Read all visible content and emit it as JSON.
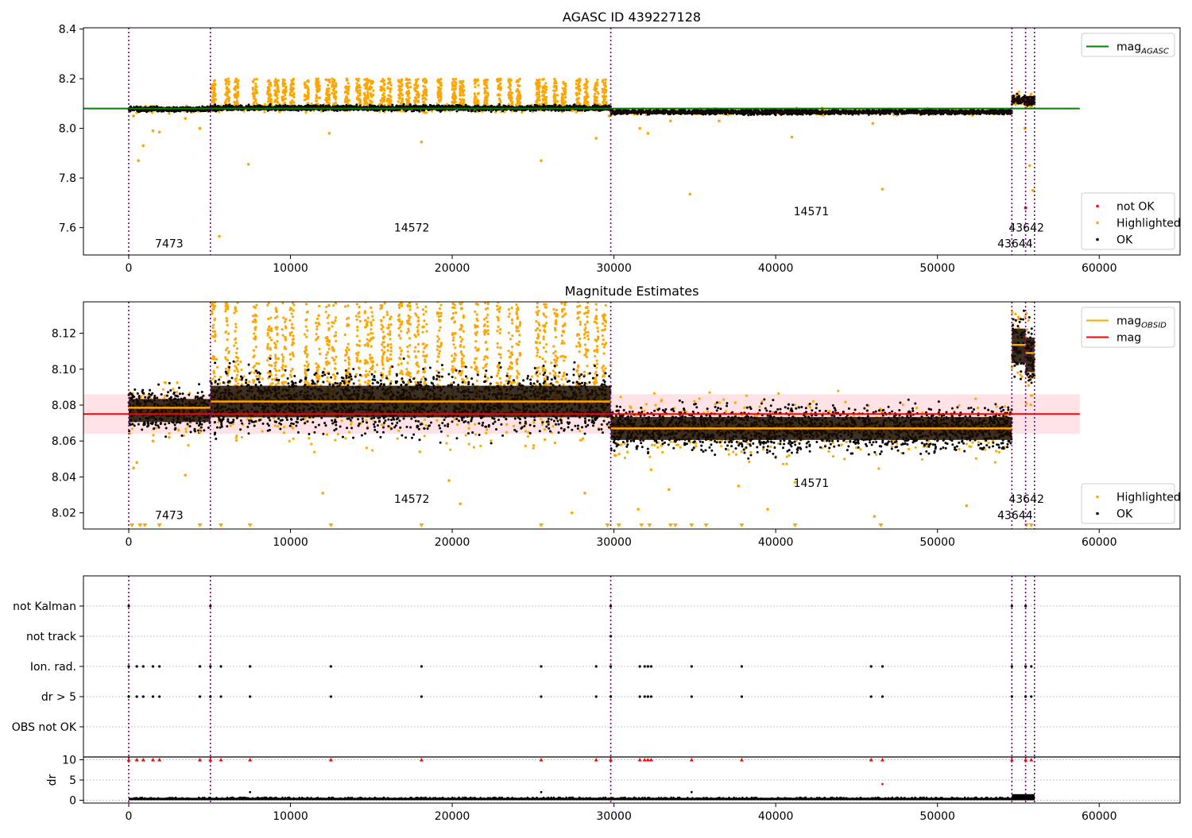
{
  "chart_data": [
    {
      "type": "scatter",
      "title": "AGASC ID 439227128",
      "xlabel": "",
      "ylabel": "",
      "xlim": [
        -2800,
        65000
      ],
      "ylim": [
        7.49,
        8.405
      ],
      "xticks": [
        0,
        10000,
        20000,
        30000,
        40000,
        50000,
        60000
      ],
      "xtick_labels": [
        "0",
        "10000",
        "20000",
        "30000",
        "40000",
        "50000",
        "60000"
      ],
      "yticks": [
        7.6,
        7.8,
        8.0,
        8.2,
        8.4
      ],
      "ytick_labels": [
        "7.6",
        "7.8",
        "8.0",
        "8.2",
        "8.4"
      ],
      "obsid_boundaries": [
        0,
        5050,
        29800,
        54600,
        55450,
        56000
      ],
      "obsid_labels": [
        {
          "text": "7473",
          "x": 2500,
          "y": 7.52
        },
        {
          "text": "14572",
          "x": 17500,
          "y": 7.585
        },
        {
          "text": "14571",
          "x": 42200,
          "y": 7.65
        },
        {
          "text": "43642",
          "x": 55500,
          "y": 7.585
        },
        {
          "text": "43644",
          "x": 54800,
          "y": 7.52
        }
      ],
      "reference_lines": [
        {
          "name": "mag_AGASC",
          "value": 8.08,
          "x_range": [
            -2800,
            58800
          ],
          "color": "#008000"
        }
      ],
      "legends": [
        {
          "position": "upper-right",
          "entries": [
            {
              "label": "mag",
              "sub": "AGASC",
              "color": "#008000",
              "marker": "line"
            }
          ]
        },
        {
          "position": "lower-right",
          "entries": [
            {
              "label": "not OK",
              "color": "#ff0000",
              "marker": "dot"
            },
            {
              "label": "Highlighted",
              "color": "#ffa500",
              "marker": "dot"
            },
            {
              "label": "OK",
              "color": "#000000",
              "marker": "dot"
            }
          ]
        }
      ],
      "series": [
        {
          "name": "OK",
          "color": "#000000",
          "segments": [
            {
              "x": [
                0,
                5050
              ],
              "center": 8.077,
              "spread": 0.006
            },
            {
              "x": [
                5050,
                29800
              ],
              "center": 8.082,
              "spread": 0.007
            },
            {
              "x": [
                29800,
                54600
              ],
              "center": 8.066,
              "spread": 0.006
            },
            {
              "x": [
                54600,
                55450
              ],
              "center": 8.115,
              "spread": 0.012
            },
            {
              "x": [
                55450,
                56000
              ],
              "center": 8.11,
              "spread": 0.012
            }
          ]
        },
        {
          "name": "Highlighted",
          "color": "#ffa500",
          "spikes": {
            "x": [
              5250,
              6100,
              6650,
              7800,
              8700,
              9150,
              9600,
              10100,
              11000,
              11700,
              12300,
              12700,
              13500,
              14200,
              14700,
              15000,
              15700,
              16100,
              16800,
              17300,
              17800,
              18300,
              19200,
              20100,
              20600,
              21500,
              22100,
              22900,
              23600,
              24100,
              25300,
              25700,
              26400,
              26900,
              27800,
              28300,
              28900,
              29400
            ],
            "peak": 8.2
          },
          "outliers": {
            "x": [
              300,
              600,
              900,
              1500,
              1900,
              2500,
              3500,
              4400,
              5600,
              7400,
              12400,
              18100,
              25500,
              28900,
              29700,
              31600,
              32100,
              33500,
              34700,
              36500,
              41000,
              46000,
              46600,
              55400,
              55700,
              55900
            ],
            "y": [
              8.05,
              7.87,
              7.93,
              7.99,
              7.985,
              8.06,
              8.04,
              8.0,
              7.565,
              7.855,
              7.98,
              7.945,
              7.87,
              7.96,
              8.05,
              8.0,
              7.98,
              8.03,
              7.735,
              8.03,
              7.965,
              8.02,
              7.755,
              8.0,
              7.85,
              7.75
            ]
          }
        },
        {
          "name": "not OK",
          "color": "#ff0000",
          "x": [
            55450
          ],
          "y": [
            7.68
          ]
        }
      ]
    },
    {
      "type": "scatter",
      "title": "Magnitude Estimates",
      "xlabel": "",
      "ylabel": "",
      "xlim": [
        -2800,
        65000
      ],
      "ylim": [
        8.011,
        8.1375
      ],
      "xticks": [
        0,
        10000,
        20000,
        30000,
        40000,
        50000,
        60000
      ],
      "xtick_labels": [
        "0",
        "10000",
        "20000",
        "30000",
        "40000",
        "50000",
        "60000"
      ],
      "yticks": [
        8.02,
        8.04,
        8.06,
        8.08,
        8.1,
        8.12
      ],
      "ytick_labels": [
        "8.02",
        "8.04",
        "8.06",
        "8.08",
        "8.10",
        "8.12"
      ],
      "obsid_boundaries": [
        0,
        5050,
        29800,
        54600,
        55450,
        56000
      ],
      "obsid_labels": [
        {
          "text": "7473",
          "x": 2500,
          "y": 8.0165
        },
        {
          "text": "14572",
          "x": 17500,
          "y": 8.0255
        },
        {
          "text": "14571",
          "x": 42200,
          "y": 8.0345
        },
        {
          "text": "43642",
          "x": 55500,
          "y": 8.0255
        },
        {
          "text": "43644",
          "x": 54800,
          "y": 8.0165
        }
      ],
      "band": {
        "range": [
          8.064,
          8.086
        ],
        "x_range": [
          -2800,
          58800
        ],
        "color": "#ffb6c1"
      },
      "reference_lines": [
        {
          "name": "mag",
          "value": 8.075,
          "x_range": [
            -2800,
            58800
          ],
          "color": "#ff0000"
        }
      ],
      "obsid_means": [
        {
          "x": [
            0,
            5050
          ],
          "value": 8.0785
        },
        {
          "x": [
            5050,
            29800
          ],
          "value": 8.082
        },
        {
          "x": [
            29800,
            54600
          ],
          "value": 8.067
        },
        {
          "x": [
            54600,
            55450
          ],
          "value": 8.1135
        },
        {
          "x": [
            55450,
            56000
          ],
          "value": 8.109
        }
      ],
      "legends": [
        {
          "position": "upper-right",
          "entries": [
            {
              "label": "mag",
              "sub": "OBSID",
              "color": "#ffa500",
              "marker": "line"
            },
            {
              "label": "mag",
              "sub": "",
              "color": "#ff0000",
              "marker": "line"
            }
          ]
        },
        {
          "position": "lower-right",
          "entries": [
            {
              "label": "Highlighted",
              "color": "#ffa500",
              "marker": "dot"
            },
            {
              "label": "OK",
              "color": "#000000",
              "marker": "dot"
            }
          ]
        }
      ],
      "series": [
        {
          "name": "OK",
          "color": "#000000",
          "segments": [
            {
              "x": [
                0,
                5050
              ],
              "center": 8.077,
              "spread": 0.008
            },
            {
              "x": [
                5050,
                29800
              ],
              "center": 8.082,
              "spread": 0.011
            },
            {
              "x": [
                29800,
                54600
              ],
              "center": 8.067,
              "spread": 0.008
            },
            {
              "x": [
                54600,
                55450
              ],
              "center": 8.113,
              "spread": 0.012
            },
            {
              "x": [
                55450,
                56000
              ],
              "center": 8.108,
              "spread": 0.012
            }
          ]
        },
        {
          "name": "Highlighted",
          "color": "#ffa500",
          "spikes": {
            "x": [
              5250,
              6100,
              6650,
              7800,
              8700,
              9150,
              9600,
              10100,
              11000,
              11700,
              12300,
              12700,
              13500,
              14200,
              14700,
              15000,
              15700,
              16100,
              16800,
              17300,
              17800,
              18300,
              19200,
              20100,
              20600,
              21500,
              22100,
              22900,
              23600,
              24100,
              25300,
              25700,
              26400,
              26900,
              27800,
              28300,
              28900,
              29400
            ],
            "peak": 8.1375
          },
          "outliers": {
            "x": [
              300,
              500,
              1500,
              2500,
              3500,
              4400,
              12000,
              18000,
              19800,
              20500,
              27400,
              28200,
              30100,
              31500,
              32300,
              33400,
              37700,
              39500,
              41200,
              46100,
              51800
            ],
            "y": [
              8.045,
              8.048,
              8.06,
              8.062,
              8.041,
              8.065,
              8.031,
              8.054,
              8.038,
              8.025,
              8.02,
              8.031,
              8.052,
              8.022,
              8.044,
              8.033,
              8.035,
              8.022,
              8.037,
              8.018,
              8.024
            ]
          },
          "clipped_low_x": [
            200,
            700,
            1000,
            1900,
            4400,
            5700,
            7500,
            12500,
            18100,
            25500,
            29600,
            30300,
            31700,
            32200,
            33500,
            33800,
            34800,
            35700,
            37900,
            41200,
            46500,
            55500,
            55800
          ]
        }
      ]
    },
    {
      "type": "scatter",
      "title": "",
      "xlabel": "",
      "ylabel": "",
      "xlim": [
        -2800,
        65000
      ],
      "categories": [
        "not Kalman",
        "not track",
        "Ion. rad.",
        "dr > 5",
        "OBS not OK"
      ],
      "obsid_boundaries": [
        0,
        5050,
        29800,
        54600,
        55450,
        56000
      ],
      "flags": [
        {
          "category": "not Kalman",
          "x": [
            0,
            5050,
            29800,
            54600,
            55450
          ]
        },
        {
          "category": "not track",
          "x": [
            29800
          ]
        },
        {
          "category": "Ion. rad.",
          "x": [
            0,
            500,
            900,
            1500,
            1900,
            4400,
            5050,
            5700,
            7500,
            12500,
            18100,
            25500,
            28900,
            29800,
            31600,
            31900,
            32100,
            32300,
            34800,
            37900,
            45900,
            46600,
            54600,
            55450,
            55800
          ]
        },
        {
          "category": "dr > 5",
          "x": [
            0,
            500,
            900,
            1500,
            1900,
            4400,
            5050,
            5700,
            7500,
            12500,
            18100,
            25500,
            28900,
            29800,
            31600,
            31900,
            32100,
            32300,
            34800,
            37900,
            45900,
            46600,
            54600,
            55450,
            55800
          ]
        },
        {
          "category": "OBS not OK",
          "x": []
        }
      ]
    },
    {
      "type": "scatter",
      "title": "",
      "xlabel": "",
      "ylabel": "dr",
      "xlim": [
        -2800,
        65000
      ],
      "ylim": [
        -0.7,
        10.7
      ],
      "xticks": [
        0,
        10000,
        20000,
        30000,
        40000,
        50000,
        60000
      ],
      "xtick_labels": [
        "0",
        "10000",
        "20000",
        "30000",
        "40000",
        "50000",
        "60000"
      ],
      "yticks": [
        0,
        5,
        10
      ],
      "ytick_labels": [
        "0",
        "5",
        "10"
      ],
      "obsid_boundaries": [
        0,
        5050,
        29800,
        54600,
        55450,
        56000
      ],
      "series": [
        {
          "name": "dr",
          "color": "#000000",
          "baseline": 0.3,
          "points": {
            "x": [
              7500,
              25500,
              34800
            ],
            "y": [
              2.0,
              2.0,
              2.0
            ]
          }
        },
        {
          "name": "dr clipped",
          "color": "#ff0000",
          "x": [
            0,
            500,
            900,
            1500,
            1900,
            4400,
            5050,
            5700,
            7500,
            12500,
            18100,
            25500,
            28900,
            29800,
            31600,
            31900,
            32100,
            32300,
            34800,
            37900,
            45900,
            46600,
            54600,
            55450,
            55800
          ],
          "y": 10,
          "extra": {
            "x": [
              46600
            ],
            "y": [
              4.0
            ]
          }
        }
      ]
    }
  ]
}
